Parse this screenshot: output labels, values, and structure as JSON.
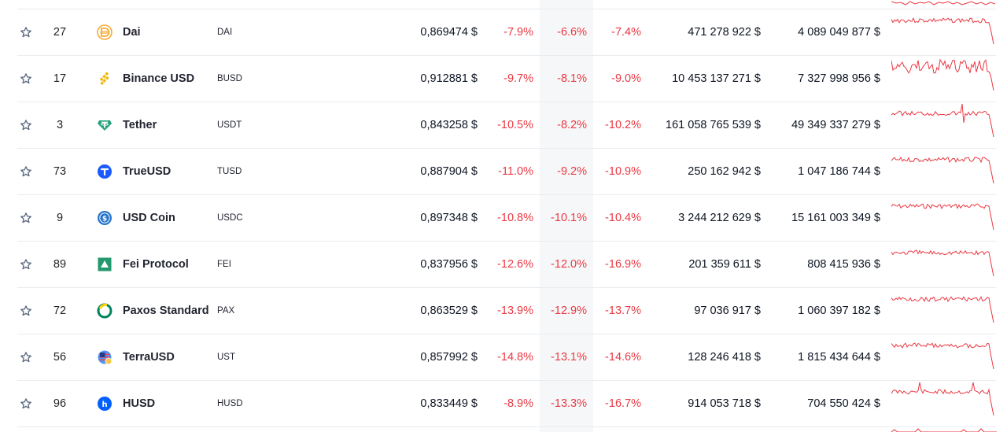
{
  "colors": {
    "negative": "#ea3943",
    "highlight_column": "#f6f7f8",
    "row_line": "#e9ecef"
  },
  "rows": [
    {
      "rank": "27",
      "name": "Dai",
      "symbol": "DAI",
      "icon": "dai-icon",
      "price": "0,869474 $",
      "change_1h": "-7.9%",
      "change_24h": "-6.6%",
      "change_7d": "-7.4%",
      "market_cap": "471 278 922 $",
      "volume": "4 089 049 877 $"
    },
    {
      "rank": "17",
      "name": "Binance USD",
      "symbol": "BUSD",
      "icon": "binance-usd-icon",
      "price": "0,912881 $",
      "change_1h": "-9.7%",
      "change_24h": "-8.1%",
      "change_7d": "-9.0%",
      "market_cap": "10 453 137 271 $",
      "volume": "7 327 998 956 $"
    },
    {
      "rank": "3",
      "name": "Tether",
      "symbol": "USDT",
      "icon": "tether-icon",
      "price": "0,843258 $",
      "change_1h": "-10.5%",
      "change_24h": "-8.2%",
      "change_7d": "-10.2%",
      "market_cap": "161 058 765 539 $",
      "volume": "49 349 337 279 $"
    },
    {
      "rank": "73",
      "name": "TrueUSD",
      "symbol": "TUSD",
      "icon": "trueusd-icon",
      "price": "0,887904 $",
      "change_1h": "-11.0%",
      "change_24h": "-9.2%",
      "change_7d": "-10.9%",
      "market_cap": "250 162 942 $",
      "volume": "1 047 186 744 $"
    },
    {
      "rank": "9",
      "name": "USD Coin",
      "symbol": "USDC",
      "icon": "usd-coin-icon",
      "price": "0,897348 $",
      "change_1h": "-10.8%",
      "change_24h": "-10.1%",
      "change_7d": "-10.4%",
      "market_cap": "3 244 212 629 $",
      "volume": "15 161 003 349 $"
    },
    {
      "rank": "89",
      "name": "Fei Protocol",
      "symbol": "FEI",
      "icon": "fei-protocol-icon",
      "price": "0,837956 $",
      "change_1h": "-12.6%",
      "change_24h": "-12.0%",
      "change_7d": "-16.9%",
      "market_cap": "201 359 611 $",
      "volume": "808 415 936 $"
    },
    {
      "rank": "72",
      "name": "Paxos Standard",
      "symbol": "PAX",
      "icon": "paxos-standard-icon",
      "price": "0,863529 $",
      "change_1h": "-13.9%",
      "change_24h": "-12.9%",
      "change_7d": "-13.7%",
      "market_cap": "97 036 917 $",
      "volume": "1 060 397 182 $"
    },
    {
      "rank": "56",
      "name": "TerraUSD",
      "symbol": "UST",
      "icon": "terrausd-icon",
      "price": "0,857992 $",
      "change_1h": "-14.8%",
      "change_24h": "-13.1%",
      "change_7d": "-14.6%",
      "market_cap": "128 246 418 $",
      "volume": "1 815 434 644 $"
    },
    {
      "rank": "96",
      "name": "HUSD",
      "symbol": "HUSD",
      "icon": "husd-icon",
      "price": "0,833449 $",
      "change_1h": "-8.9%",
      "change_24h": "-13.3%",
      "change_7d": "-16.7%",
      "market_cap": "914 053 718 $",
      "volume": "704 550 424 $"
    }
  ]
}
